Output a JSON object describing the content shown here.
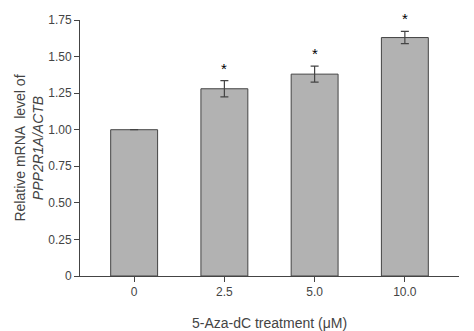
{
  "chart_data": {
    "type": "bar",
    "categories": [
      "0",
      "2.5",
      "5.0",
      "10.0"
    ],
    "values": [
      1.0,
      1.28,
      1.38,
      1.63
    ],
    "errors": [
      0.0,
      0.055,
      0.055,
      0.042
    ],
    "color": "#b2b2b2",
    "xlabel": "5-Aza-dC treatment (μM)",
    "ylabel": [
      "Relative mRNA  level of",
      "PPP2R1A/ACTB"
    ],
    "ylim": [
      0,
      1.75
    ],
    "yticks": [
      0,
      {
        "value": 0.25,
        "label": "0.25"
      },
      {
        "value": 0.5,
        "label": "0.50"
      },
      {
        "value": 0.75,
        "label": "0.75"
      },
      {
        "value": 1.0,
        "label": "1.00"
      },
      {
        "value": 1.25,
        "label": "1.25"
      },
      {
        "value": 1.5,
        "label": "1.50"
      },
      1.75
    ],
    "annotations": [
      {
        "category": "2.5",
        "text": "*"
      },
      {
        "category": "5.0",
        "text": "*"
      },
      {
        "category": "10.0",
        "text": "*"
      }
    ],
    "grid": false
  }
}
